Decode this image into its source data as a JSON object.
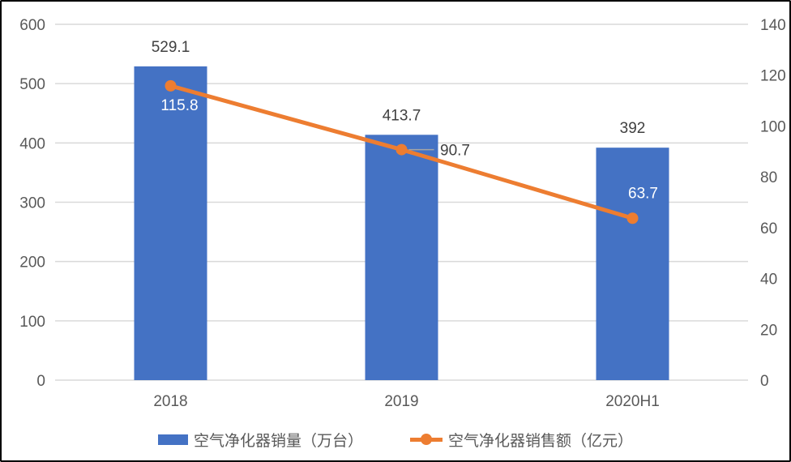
{
  "chart_data": {
    "type": "bar",
    "subtype": "combo-bar-line",
    "title": "",
    "categories": [
      "2018",
      "2019",
      "2020H1"
    ],
    "series": [
      {
        "name": "空气净化器销量（万台）",
        "type": "bar",
        "axis": "left",
        "color": "#4472C4",
        "values": [
          529.1,
          413.7,
          392
        ],
        "labels": [
          "529.1",
          "413.7",
          "392"
        ]
      },
      {
        "name": "空气净化器销售额（亿元）",
        "type": "line",
        "axis": "right",
        "color": "#ED7D31",
        "values": [
          115.8,
          90.7,
          63.7
        ],
        "labels": [
          "115.8",
          "90.7",
          "63.7"
        ]
      }
    ],
    "left_axis": {
      "min": 0,
      "max": 600,
      "step": 100,
      "ticks": [
        "0",
        "100",
        "200",
        "300",
        "400",
        "500",
        "600"
      ]
    },
    "right_axis": {
      "min": 0,
      "max": 140,
      "step": 20,
      "ticks": [
        "0",
        "20",
        "40",
        "60",
        "80",
        "100",
        "120",
        "140"
      ]
    },
    "grid": true,
    "legend_position": "bottom"
  },
  "legend": {
    "items": [
      {
        "label": "空气净化器销量（万台）",
        "color": "#4472C4",
        "marker": "bar"
      },
      {
        "label": "空气净化器销售额（亿元）",
        "color": "#ED7D31",
        "marker": "line-dot"
      }
    ]
  },
  "colors": {
    "bar": "#4472C4",
    "line": "#ED7D31",
    "gridline": "#D9D9D9",
    "axis_text": "#595959",
    "data_label": "#404040",
    "data_label_on_bar": "#FFFFFF",
    "leader_line": "#A6A6A6",
    "frame_border": "#000000",
    "background": "#FFFFFF"
  }
}
